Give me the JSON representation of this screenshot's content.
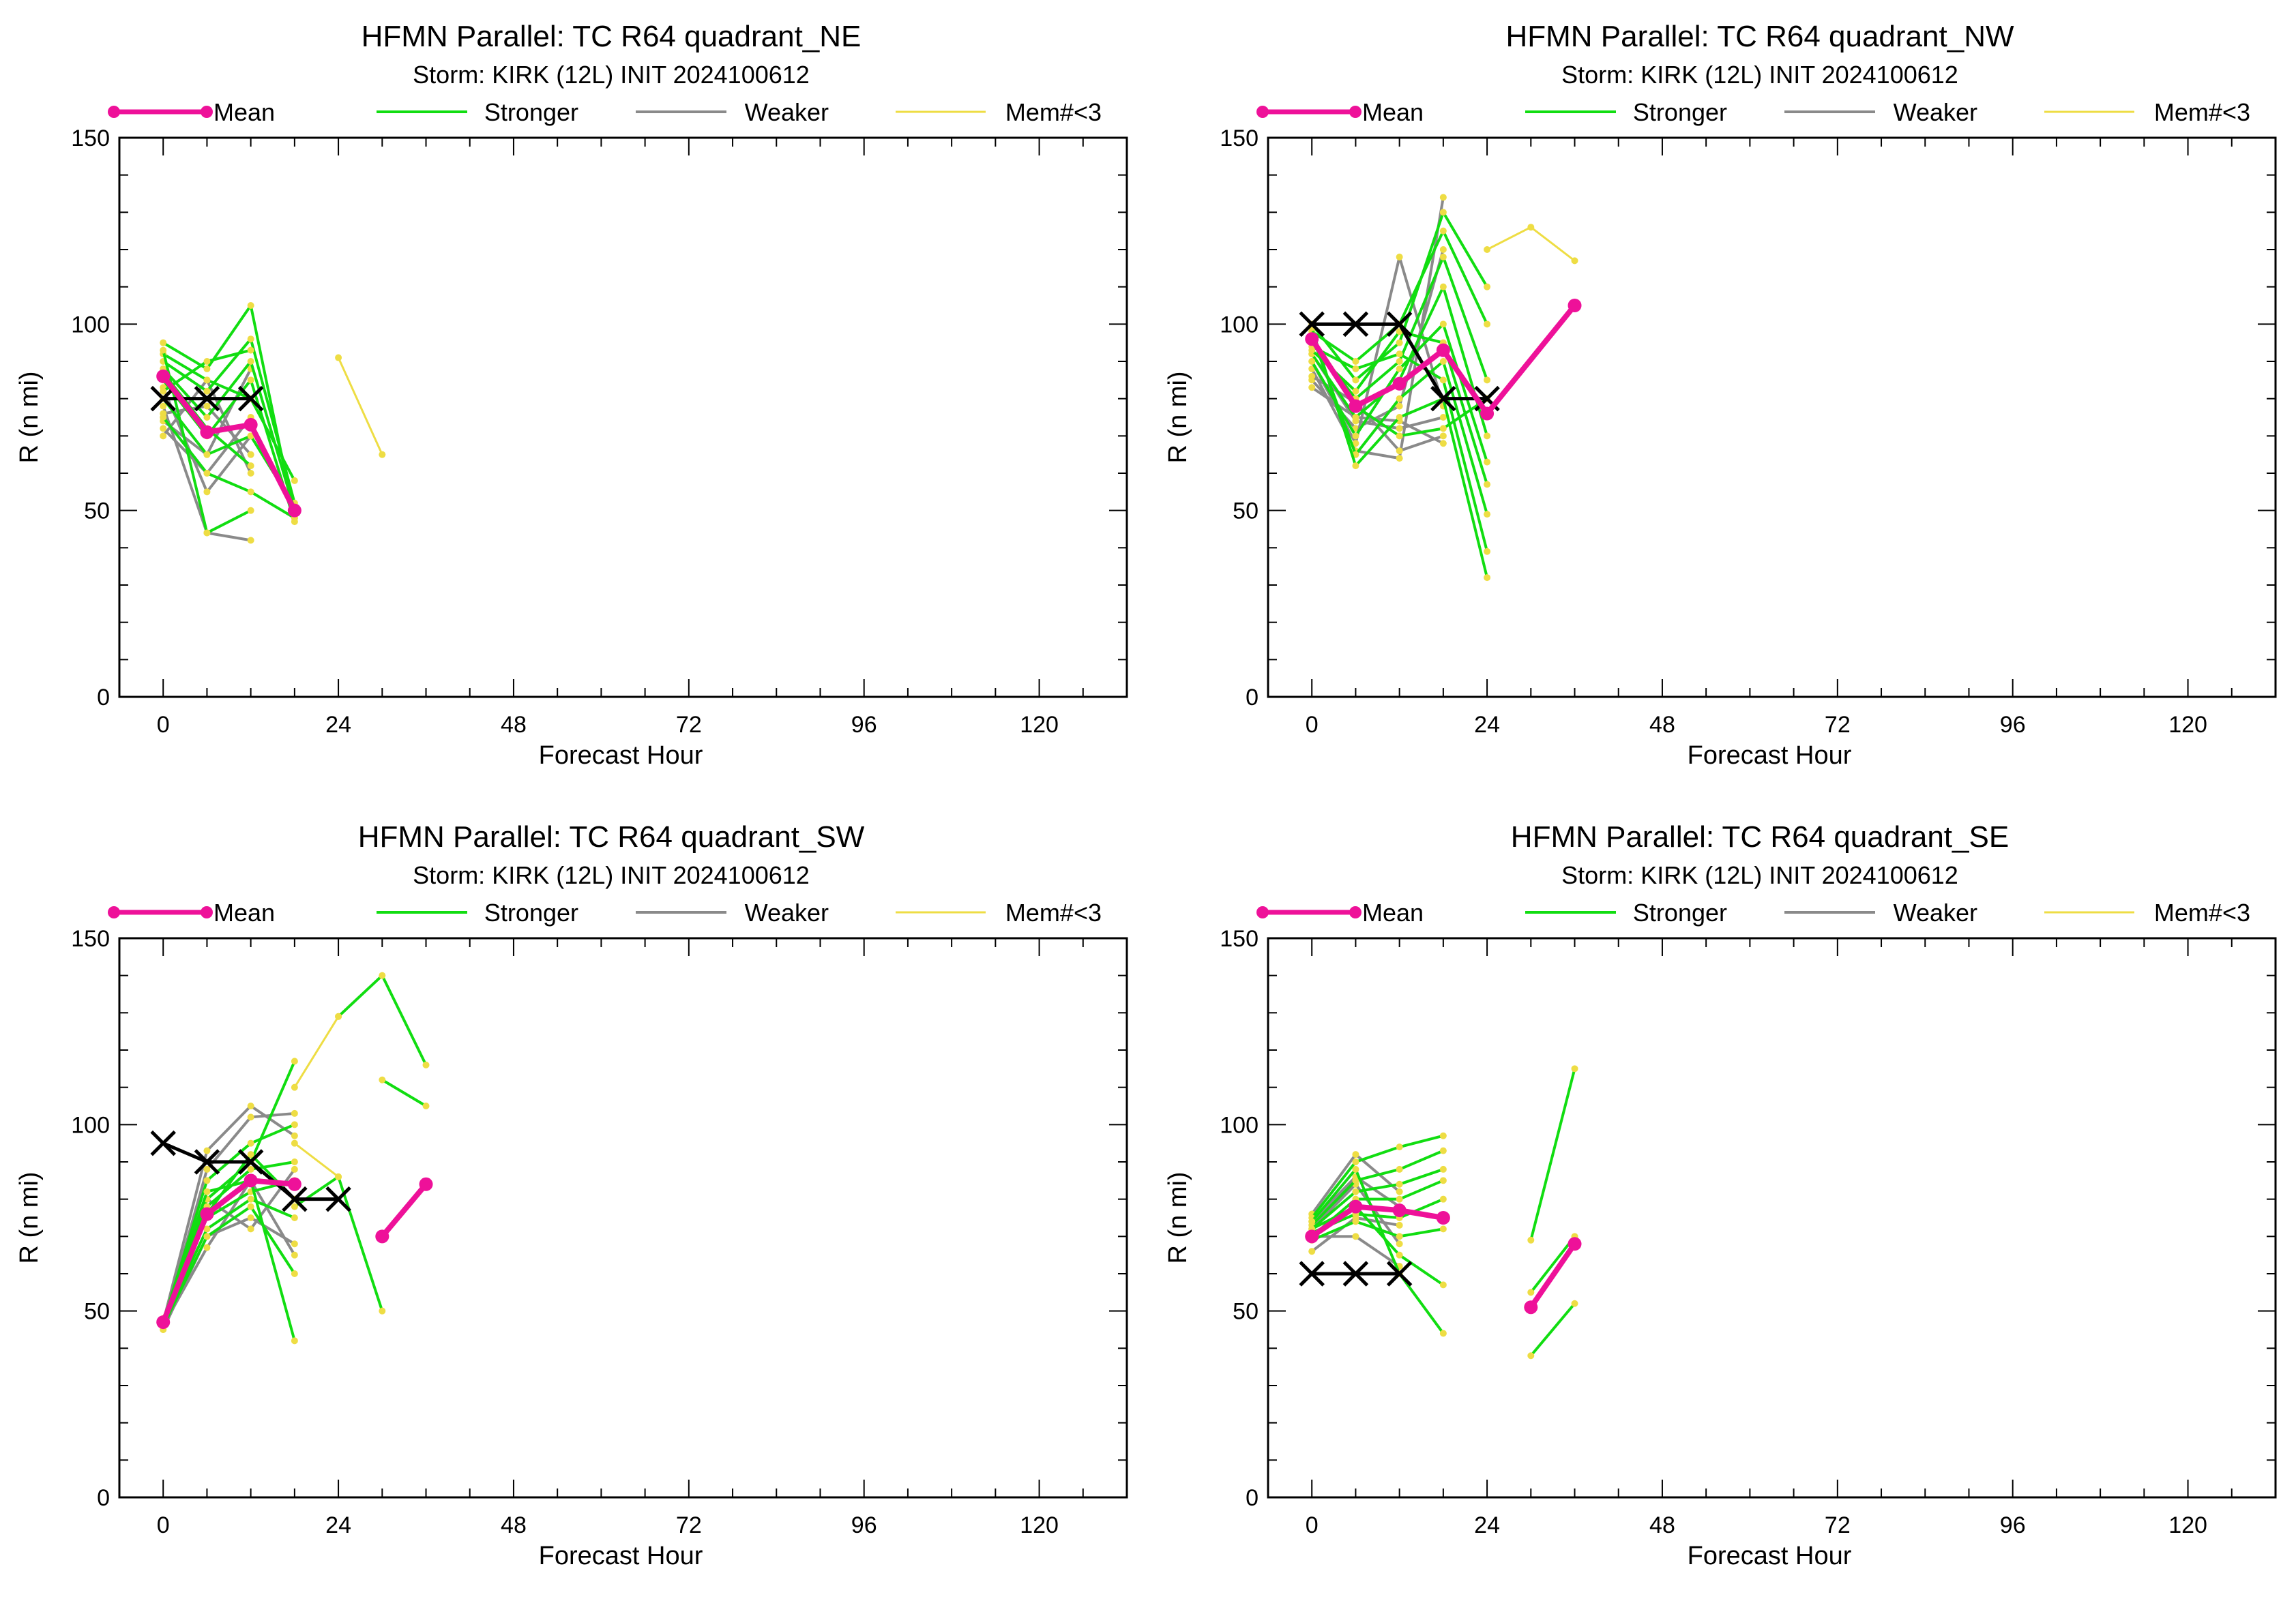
{
  "legend": {
    "mean": "Mean",
    "stronger": "Stronger",
    "weaker": "Weaker",
    "few": "Mem#<3"
  },
  "colors": {
    "mean": "#ee1199",
    "stronger": "#11dd11",
    "weaker": "#8a8a8a",
    "few": "#eedd44",
    "best_track": "#000000"
  },
  "chart_data": [
    {
      "type": "line",
      "title": "HFMN Parallel: TC  R64 quadrant_NE",
      "subtitle": "Storm: KIRK (12L) INIT 2024100612",
      "xlabel": "Forecast Hour",
      "ylabel": "R (n mi)",
      "xlim": [
        -6,
        132
      ],
      "ylim": [
        0,
        150
      ],
      "xticks": [
        0,
        24,
        48,
        72,
        96,
        120
      ],
      "yticks": [
        0,
        50,
        100,
        150
      ],
      "mean": {
        "x": [
          0,
          6,
          12,
          18
        ],
        "y": [
          86,
          71,
          73,
          50
        ]
      },
      "best_track": {
        "x": [
          0,
          6,
          12
        ],
        "y": [
          80,
          80,
          80
        ]
      },
      "stronger": [
        {
          "x": [
            0,
            6,
            12,
            18
          ],
          "y": [
            92,
            85,
            80,
            58
          ]
        },
        {
          "x": [
            0,
            6,
            12,
            18
          ],
          "y": [
            95,
            88,
            105,
            48
          ]
        },
        {
          "x": [
            0,
            6,
            12,
            18
          ],
          "y": [
            90,
            82,
            96,
            52
          ]
        },
        {
          "x": [
            0,
            6,
            12,
            18
          ],
          "y": [
            88,
            75,
            90,
            50
          ]
        },
        {
          "x": [
            0,
            6,
            12,
            18
          ],
          "y": [
            85,
            70,
            85,
            47
          ]
        },
        {
          "x": [
            0,
            6,
            12,
            18
          ],
          "y": [
            80,
            65,
            70,
            51
          ]
        },
        {
          "x": [
            0,
            6,
            12,
            18
          ],
          "y": [
            75,
            60,
            55,
            48
          ]
        },
        {
          "x": [
            0,
            6,
            12
          ],
          "y": [
            93,
            44,
            50
          ]
        },
        {
          "x": [
            0,
            6,
            12
          ],
          "y": [
            82,
            90,
            93
          ]
        },
        {
          "x": [
            0,
            6,
            12
          ],
          "y": [
            87,
            72,
            62
          ]
        }
      ],
      "weaker": [
        {
          "x": [
            0,
            6,
            12
          ],
          "y": [
            78,
            44,
            42
          ]
        },
        {
          "x": [
            0,
            6,
            12
          ],
          "y": [
            72,
            60,
            75
          ]
        },
        {
          "x": [
            0,
            6,
            12
          ],
          "y": [
            70,
            85,
            60
          ]
        },
        {
          "x": [
            0,
            6,
            12
          ],
          "y": [
            74,
            65,
            88
          ]
        },
        {
          "x": [
            0,
            6,
            12
          ],
          "y": [
            83,
            55,
            70
          ]
        },
        {
          "x": [
            0,
            6,
            12
          ],
          "y": [
            76,
            78,
            65
          ]
        }
      ],
      "few": [
        {
          "x": [
            24,
            30
          ],
          "y": [
            91,
            65
          ]
        }
      ]
    },
    {
      "type": "line",
      "title": "HFMN Parallel: TC  R64 quadrant_NW",
      "subtitle": "Storm: KIRK (12L) INIT 2024100612",
      "xlabel": "Forecast Hour",
      "ylabel": "R (n mi)",
      "xlim": [
        -6,
        132
      ],
      "ylim": [
        0,
        150
      ],
      "xticks": [
        0,
        24,
        48,
        72,
        96,
        120
      ],
      "yticks": [
        0,
        50,
        100,
        150
      ],
      "mean": {
        "x": [
          0,
          6,
          12,
          18,
          24,
          36
        ],
        "y": [
          96,
          78,
          84,
          93,
          76,
          105
        ]
      },
      "best_track": {
        "x": [
          0,
          6,
          12,
          18,
          24
        ],
        "y": [
          100,
          100,
          100,
          80,
          80
        ]
      },
      "stronger": [
        {
          "x": [
            0,
            6,
            12,
            18,
            24
          ],
          "y": [
            100,
            85,
            95,
            130,
            110
          ]
        },
        {
          "x": [
            0,
            6,
            12,
            18,
            24
          ],
          "y": [
            98,
            90,
            100,
            125,
            100
          ]
        },
        {
          "x": [
            0,
            6,
            12,
            18,
            24
          ],
          "y": [
            95,
            80,
            90,
            118,
            85
          ]
        },
        {
          "x": [
            0,
            6,
            12,
            18,
            24
          ],
          "y": [
            92,
            75,
            85,
            110,
            70
          ]
        },
        {
          "x": [
            0,
            6,
            12,
            18,
            24
          ],
          "y": [
            90,
            70,
            88,
            100,
            63
          ]
        },
        {
          "x": [
            0,
            6,
            12,
            18,
            24
          ],
          "y": [
            97,
            65,
            80,
            90,
            49
          ]
        },
        {
          "x": [
            0,
            6,
            12,
            18,
            24
          ],
          "y": [
            94,
            88,
            92,
            85,
            39
          ]
        },
        {
          "x": [
            0,
            6,
            12,
            18,
            24
          ],
          "y": [
            99,
            62,
            75,
            80,
            32
          ]
        },
        {
          "x": [
            0,
            6,
            12,
            18,
            24
          ],
          "y": [
            93,
            82,
            98,
            95,
            57
          ]
        },
        {
          "x": [
            0,
            6,
            12,
            18,
            24
          ],
          "y": [
            96,
            78,
            70,
            72,
            80
          ]
        }
      ],
      "weaker": [
        {
          "x": [
            0,
            6,
            12,
            18
          ],
          "y": [
            88,
            66,
            64,
            134
          ]
        },
        {
          "x": [
            0,
            6,
            12,
            18
          ],
          "y": [
            85,
            72,
            78,
            120
          ]
        },
        {
          "x": [
            0,
            6,
            12,
            18
          ],
          "y": [
            83,
            75,
            74,
            68
          ]
        },
        {
          "x": [
            0,
            6,
            12,
            18
          ],
          "y": [
            90,
            68,
            118,
            78
          ]
        },
        {
          "x": [
            0,
            6,
            12,
            18
          ],
          "y": [
            86,
            79,
            66,
            70
          ]
        },
        {
          "x": [
            0,
            6,
            12,
            18
          ],
          "y": [
            92,
            74,
            72,
            75
          ]
        }
      ],
      "few": [
        {
          "x": [
            24,
            30,
            36
          ],
          "y": [
            120,
            126,
            117
          ]
        }
      ]
    },
    {
      "type": "line",
      "title": "HFMN Parallel: TC  R64 quadrant_SW",
      "subtitle": "Storm: KIRK (12L) INIT 2024100612",
      "xlabel": "Forecast Hour",
      "ylabel": "R (n mi)",
      "xlim": [
        -6,
        132
      ],
      "ylim": [
        0,
        150
      ],
      "xticks": [
        0,
        24,
        48,
        72,
        96,
        120
      ],
      "yticks": [
        0,
        50,
        100,
        150
      ],
      "mean": {
        "x": [
          0,
          6,
          12,
          18
        ],
        "y": [
          47,
          76,
          85,
          84
        ]
      },
      "mean_late": {
        "x": [
          30,
          36
        ],
        "y": [
          70,
          84
        ]
      },
      "best_track": {
        "x": [
          0,
          6,
          12,
          18,
          24
        ],
        "y": [
          95,
          90,
          90,
          80,
          80
        ]
      },
      "stronger": [
        {
          "x": [
            0,
            6,
            12,
            18
          ],
          "y": [
            47,
            80,
            90,
            117
          ]
        },
        {
          "x": [
            0,
            6,
            12,
            18
          ],
          "y": [
            47,
            85,
            95,
            100
          ]
        },
        {
          "x": [
            0,
            6,
            12,
            18
          ],
          "y": [
            46,
            78,
            88,
            90
          ]
        },
        {
          "x": [
            0,
            6,
            12,
            18
          ],
          "y": [
            48,
            75,
            82,
            85
          ]
        },
        {
          "x": [
            0,
            6,
            12,
            18
          ],
          "y": [
            47,
            72,
            80,
            75
          ]
        },
        {
          "x": [
            0,
            6,
            12,
            18
          ],
          "y": [
            46,
            70,
            78,
            60
          ]
        },
        {
          "x": [
            0,
            6,
            12,
            18
          ],
          "y": [
            47,
            82,
            85,
            42
          ]
        },
        {
          "x": [
            0,
            6,
            12,
            18
          ],
          "y": [
            45,
            76,
            92,
            80
          ]
        },
        {
          "x": [
            24,
            30,
            36
          ],
          "y": [
            129,
            140,
            116
          ]
        },
        {
          "x": [
            18,
            24,
            30
          ],
          "y": [
            78,
            86,
            50
          ]
        },
        {
          "x": [
            30,
            36
          ],
          "y": [
            112,
            105
          ]
        }
      ],
      "weaker": [
        {
          "x": [
            0,
            6,
            12,
            18
          ],
          "y": [
            47,
            93,
            105,
            97
          ]
        },
        {
          "x": [
            0,
            6,
            12,
            18
          ],
          "y": [
            46,
            88,
            102,
            103
          ]
        },
        {
          "x": [
            0,
            6,
            12,
            18
          ],
          "y": [
            47,
            80,
            72,
            88
          ]
        },
        {
          "x": [
            0,
            6,
            12,
            18
          ],
          "y": [
            45,
            70,
            75,
            68
          ]
        },
        {
          "x": [
            0,
            6,
            12,
            18
          ],
          "y": [
            46,
            67,
            85,
            65
          ]
        }
      ],
      "few": [
        {
          "x": [
            18,
            24
          ],
          "y": [
            110,
            129
          ]
        },
        {
          "x": [
            18,
            24
          ],
          "y": [
            95,
            86
          ]
        }
      ]
    },
    {
      "type": "line",
      "title": "HFMN Parallel: TC  R64 quadrant_SE",
      "subtitle": "Storm: KIRK (12L) INIT 2024100612",
      "xlabel": "Forecast Hour",
      "ylabel": "R (n mi)",
      "xlim": [
        -6,
        132
      ],
      "ylim": [
        0,
        150
      ],
      "xticks": [
        0,
        24,
        48,
        72,
        96,
        120
      ],
      "yticks": [
        0,
        50,
        100,
        150
      ],
      "mean": {
        "x": [
          0,
          6,
          12,
          18
        ],
        "y": [
          70,
          78,
          77,
          75
        ]
      },
      "mean_late": {
        "x": [
          30,
          36
        ],
        "y": [
          51,
          68
        ]
      },
      "best_track": {
        "x": [
          0,
          6,
          12
        ],
        "y": [
          60,
          60,
          60
        ]
      },
      "stronger": [
        {
          "x": [
            0,
            6,
            12,
            18
          ],
          "y": [
            75,
            90,
            94,
            97
          ]
        },
        {
          "x": [
            0,
            6,
            12,
            18
          ],
          "y": [
            73,
            85,
            88,
            93
          ]
        },
        {
          "x": [
            0,
            6,
            12,
            18
          ],
          "y": [
            72,
            82,
            84,
            88
          ]
        },
        {
          "x": [
            0,
            6,
            12,
            18
          ],
          "y": [
            70,
            80,
            80,
            85
          ]
        },
        {
          "x": [
            0,
            6,
            12,
            18
          ],
          "y": [
            71,
            76,
            75,
            80
          ]
        },
        {
          "x": [
            0,
            6,
            12,
            18
          ],
          "y": [
            69,
            74,
            70,
            72
          ]
        },
        {
          "x": [
            0,
            6,
            12,
            18
          ],
          "y": [
            72,
            78,
            65,
            57
          ]
        },
        {
          "x": [
            0,
            6,
            12,
            18
          ],
          "y": [
            74,
            88,
            60,
            44
          ]
        },
        {
          "x": [
            30,
            36
          ],
          "y": [
            69,
            115
          ]
        },
        {
          "x": [
            30,
            36
          ],
          "y": [
            38,
            52
          ]
        },
        {
          "x": [
            30,
            36
          ],
          "y": [
            55,
            70
          ]
        }
      ],
      "weaker": [
        {
          "x": [
            0,
            6,
            12
          ],
          "y": [
            76,
            92,
            82
          ]
        },
        {
          "x": [
            0,
            6,
            12
          ],
          "y": [
            74,
            86,
            78
          ]
        },
        {
          "x": [
            0,
            6,
            12
          ],
          "y": [
            72,
            84,
            68
          ]
        },
        {
          "x": [
            0,
            6,
            12
          ],
          "y": [
            70,
            70,
            62
          ]
        },
        {
          "x": [
            0,
            6,
            12
          ],
          "y": [
            66,
            75,
            73
          ]
        }
      ],
      "few": []
    }
  ]
}
